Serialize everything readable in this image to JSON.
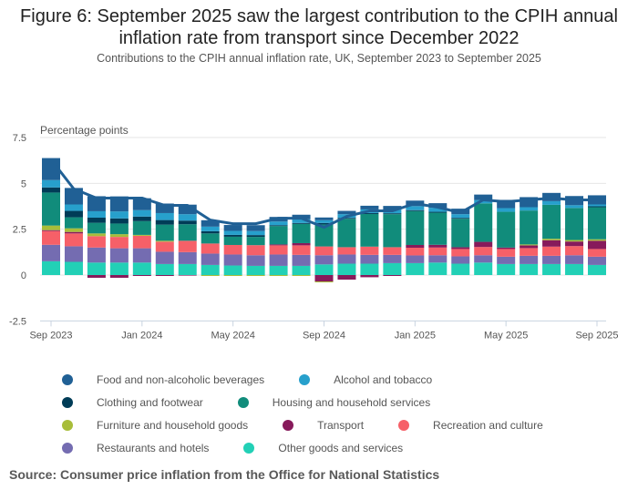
{
  "header": {
    "title_line1": "Figure 6: September 2025 saw the largest contribution to the CPIH annual",
    "title_line2": "inflation rate from transport since December 2022",
    "subtitle": "Contributions to the CPIH annual inflation rate, UK, September 2023 to September 2025"
  },
  "source": "Source: Consumer price inflation from the Office for National Statistics",
  "chart_data": {
    "type": "bar",
    "stacked": true,
    "title": "Figure 6: September 2025 saw the largest contribution to the CPIH annual inflation rate from transport since December 2022",
    "subtitle": "Contributions to the CPIH annual inflation rate, UK, September 2023 to September 2025",
    "xlabel": "",
    "ylabel": "Percentage points",
    "ylim": [
      -2.5,
      7.5
    ],
    "yticks": [
      7.5,
      5,
      2.5,
      0,
      -2.5
    ],
    "ytick_labels": [
      "7.5",
      "5",
      "2.5",
      "0",
      "-2.5"
    ],
    "grid": true,
    "legend_position": "bottom",
    "categories": [
      "Sep 2023",
      "Oct 2023",
      "Nov 2023",
      "Dec 2023",
      "Jan 2024",
      "Feb 2024",
      "Mar 2024",
      "Apr 2024",
      "May 2024",
      "Jun 2024",
      "Jul 2024",
      "Aug 2024",
      "Sep 2024",
      "Oct 2024",
      "Nov 2024",
      "Dec 2024",
      "Jan 2025",
      "Feb 2025",
      "Mar 2025",
      "Apr 2025",
      "May 2025",
      "Jun 2025",
      "Jul 2025",
      "Aug 2025",
      "Sep 2025"
    ],
    "xtick_labels": [
      "Sep 2023",
      "Jan 2024",
      "May 2024",
      "Sep 2024",
      "Jan 2025",
      "May 2025",
      "Sep 2025"
    ],
    "xtick_indices": [
      0,
      4,
      8,
      12,
      16,
      20,
      24
    ],
    "series": [
      {
        "name": "Other goods and services",
        "color": "#22d0b6",
        "values": [
          0.75,
          0.72,
          0.68,
          0.68,
          0.68,
          0.6,
          0.6,
          0.55,
          0.52,
          0.5,
          0.5,
          0.5,
          0.58,
          0.62,
          0.62,
          0.65,
          0.65,
          0.68,
          0.62,
          0.68,
          0.6,
          0.6,
          0.6,
          0.6,
          0.55
        ]
      },
      {
        "name": "Restaurants and hotels",
        "color": "#746cb1",
        "values": [
          0.9,
          0.85,
          0.82,
          0.78,
          0.78,
          0.67,
          0.65,
          0.62,
          0.6,
          0.58,
          0.62,
          0.6,
          0.5,
          0.5,
          0.48,
          0.45,
          0.42,
          0.4,
          0.4,
          0.4,
          0.4,
          0.45,
          0.45,
          0.48,
          0.45
        ]
      },
      {
        "name": "Recreation and culture",
        "color": "#f66068",
        "values": [
          0.75,
          0.7,
          0.62,
          0.62,
          0.68,
          0.55,
          0.62,
          0.55,
          0.52,
          0.55,
          0.5,
          0.52,
          0.48,
          0.4,
          0.45,
          0.42,
          0.42,
          0.42,
          0.4,
          0.45,
          0.42,
          0.42,
          0.5,
          0.5,
          0.42
        ]
      },
      {
        "name": "Transport",
        "color": "#871a5b",
        "values": [
          0.05,
          0.08,
          -0.15,
          -0.15,
          -0.05,
          -0.05,
          -0.03,
          0.0,
          0.0,
          0.0,
          0.05,
          0.12,
          -0.35,
          -0.25,
          -0.12,
          -0.05,
          0.15,
          0.15,
          0.1,
          0.28,
          0.08,
          0.15,
          0.35,
          0.25,
          0.45
        ]
      },
      {
        "name": "Furniture and household goods",
        "color": "#a8bd3a",
        "values": [
          0.25,
          0.2,
          0.15,
          0.15,
          0.05,
          0.05,
          0.0,
          -0.05,
          -0.05,
          -0.05,
          -0.05,
          -0.05,
          -0.05,
          0.0,
          0.0,
          0.0,
          0.0,
          0.0,
          0.0,
          0.0,
          0.0,
          0.05,
          0.08,
          0.08,
          0.08
        ]
      },
      {
        "name": "Housing and household services",
        "color": "#118c7b",
        "values": [
          1.8,
          0.6,
          0.58,
          0.58,
          0.75,
          0.88,
          0.9,
          0.55,
          0.45,
          0.45,
          1.0,
          1.05,
          1.2,
          1.55,
          1.78,
          1.8,
          1.85,
          1.75,
          1.55,
          2.1,
          1.95,
          1.85,
          1.85,
          1.75,
          1.75
        ]
      },
      {
        "name": "Clothing and footwear",
        "color": "#003c57",
        "values": [
          0.28,
          0.35,
          0.28,
          0.28,
          0.25,
          0.25,
          0.2,
          0.12,
          0.1,
          0.1,
          0.05,
          0.05,
          0.08,
          0.05,
          0.05,
          0.05,
          0.05,
          0.05,
          0.05,
          0.0,
          0.0,
          0.0,
          0.0,
          0.0,
          0.05
        ]
      },
      {
        "name": "Alcohol and tobacco",
        "color": "#27a0cc",
        "values": [
          0.4,
          0.35,
          0.35,
          0.38,
          0.35,
          0.38,
          0.35,
          0.25,
          0.22,
          0.22,
          0.2,
          0.2,
          0.15,
          0.2,
          0.2,
          0.2,
          0.22,
          0.22,
          0.2,
          0.18,
          0.2,
          0.18,
          0.2,
          0.15,
          0.1
        ]
      },
      {
        "name": "Food and non-alcoholic beverages",
        "color": "#206095",
        "values": [
          1.2,
          0.9,
          0.82,
          0.82,
          0.65,
          0.52,
          0.52,
          0.35,
          0.32,
          0.32,
          0.25,
          0.25,
          0.15,
          0.18,
          0.2,
          0.2,
          0.3,
          0.25,
          0.3,
          0.3,
          0.45,
          0.55,
          0.45,
          0.5,
          0.5
        ]
      }
    ],
    "line_series": {
      "name": "CPIH annual rate",
      "color": "#206095",
      "values": [
        6.3,
        4.7,
        4.2,
        4.2,
        4.2,
        3.8,
        3.8,
        3.0,
        2.8,
        2.8,
        3.1,
        3.1,
        2.6,
        3.2,
        3.5,
        3.5,
        3.9,
        3.7,
        3.4,
        4.1,
        4.0,
        4.1,
        4.2,
        4.1,
        4.1
      ]
    }
  },
  "legend": [
    [
      {
        "label": "Food and non-alcoholic beverages",
        "color": "#206095"
      },
      {
        "label": "Alcohol and tobacco",
        "color": "#27a0cc"
      }
    ],
    [
      {
        "label": "Clothing and footwear",
        "color": "#003c57"
      },
      {
        "label": "Housing and household services",
        "color": "#118c7b"
      }
    ],
    [
      {
        "label": "Furniture and household goods",
        "color": "#a8bd3a"
      },
      {
        "label": "Transport",
        "color": "#871a5b"
      },
      {
        "label": "Recreation and culture",
        "color": "#f66068"
      }
    ],
    [
      {
        "label": "Restaurants and hotels",
        "color": "#746cb1"
      },
      {
        "label": "Other goods and services",
        "color": "#22d0b6"
      }
    ]
  ]
}
